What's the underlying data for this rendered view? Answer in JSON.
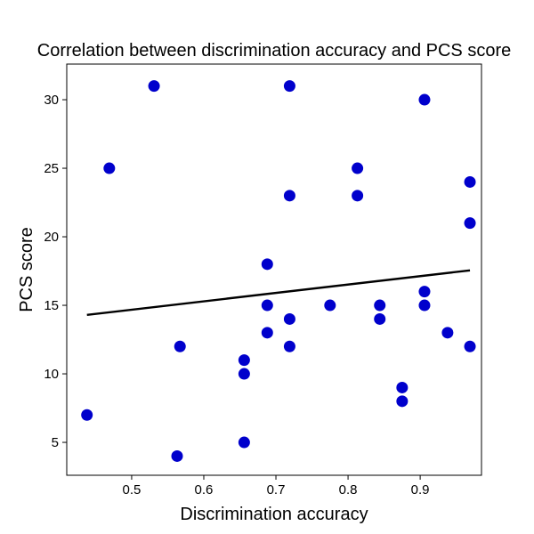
{
  "chart_data": {
    "type": "scatter",
    "title": "Correlation between discrimination accuracy and PCS score",
    "xlabel": "Discrimination accuracy",
    "ylabel": "PCS score",
    "xlim": [
      0.41,
      0.985
    ],
    "ylim": [
      2.6,
      32.6
    ],
    "xticks": [
      0.5,
      0.6,
      0.7,
      0.8,
      0.9
    ],
    "xtick_labels": [
      "0.5",
      "0.6",
      "0.7",
      "0.8",
      "0.9"
    ],
    "yticks": [
      5,
      10,
      15,
      20,
      25,
      30
    ],
    "ytick_labels": [
      "5",
      "10",
      "15",
      "20",
      "25",
      "30"
    ],
    "grid": false,
    "points": [
      {
        "x": 0.438,
        "y": 7
      },
      {
        "x": 0.469,
        "y": 25
      },
      {
        "x": 0.531,
        "y": 31
      },
      {
        "x": 0.563,
        "y": 4
      },
      {
        "x": 0.567,
        "y": 12
      },
      {
        "x": 0.656,
        "y": 11
      },
      {
        "x": 0.656,
        "y": 10
      },
      {
        "x": 0.656,
        "y": 5
      },
      {
        "x": 0.688,
        "y": 18
      },
      {
        "x": 0.688,
        "y": 15
      },
      {
        "x": 0.688,
        "y": 13
      },
      {
        "x": 0.719,
        "y": 31
      },
      {
        "x": 0.719,
        "y": 23
      },
      {
        "x": 0.719,
        "y": 14
      },
      {
        "x": 0.719,
        "y": 12
      },
      {
        "x": 0.775,
        "y": 15
      },
      {
        "x": 0.813,
        "y": 25
      },
      {
        "x": 0.813,
        "y": 23
      },
      {
        "x": 0.844,
        "y": 15
      },
      {
        "x": 0.844,
        "y": 14
      },
      {
        "x": 0.875,
        "y": 9
      },
      {
        "x": 0.875,
        "y": 8
      },
      {
        "x": 0.906,
        "y": 30
      },
      {
        "x": 0.906,
        "y": 16
      },
      {
        "x": 0.906,
        "y": 15
      },
      {
        "x": 0.938,
        "y": 13
      },
      {
        "x": 0.969,
        "y": 24
      },
      {
        "x": 0.969,
        "y": 21
      },
      {
        "x": 0.969,
        "y": 12
      }
    ],
    "point_color": "#0000cc",
    "trendline": {
      "x": [
        0.438,
        0.969
      ],
      "y": [
        14.3,
        17.55
      ],
      "color": "#000000"
    }
  }
}
